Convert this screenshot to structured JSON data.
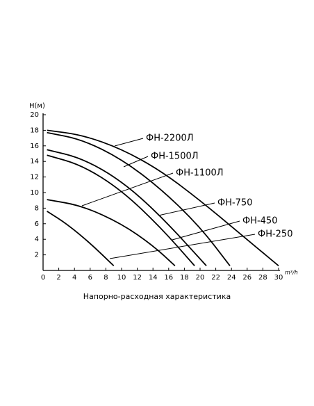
{
  "chart_data": {
    "type": "line",
    "y_label": "H(м)",
    "x_label": "m³/h",
    "caption": "Напорно-расходная характеристика",
    "xlim": [
      0,
      30
    ],
    "ylim": [
      0,
      20
    ],
    "xticks": [
      0,
      2,
      4,
      6,
      8,
      10,
      12,
      14,
      16,
      18,
      20,
      22,
      24,
      26,
      28,
      30
    ],
    "yticks": [
      2,
      4,
      6,
      8,
      10,
      12,
      14,
      16,
      18,
      20
    ],
    "color": "#000000",
    "series": [
      {
        "name": "ФН-2200Л",
        "x": [
          0.5,
          5,
          10,
          15,
          20,
          25,
          30
        ],
        "values": [
          18.0,
          17.4,
          15.6,
          12.8,
          9.0,
          4.8,
          0.6
        ]
      },
      {
        "name": "ФН-1500Л",
        "x": [
          0.5,
          5,
          10,
          15,
          20,
          23.8
        ],
        "values": [
          17.7,
          16.8,
          14.3,
          10.5,
          5.6,
          0.6
        ]
      },
      {
        "name": "ФН-1100Л",
        "x": [
          0.5,
          5,
          10,
          14,
          16.8
        ],
        "values": [
          9.1,
          8.3,
          6.0,
          3.2,
          0.6
        ]
      },
      {
        "name": "ФН-750",
        "x": [
          0.5,
          5,
          10,
          15,
          20.8
        ],
        "values": [
          15.5,
          14.4,
          11.5,
          7.0,
          0.6
        ]
      },
      {
        "name": "ФН-450",
        "x": [
          0.5,
          5,
          10,
          15,
          19.3
        ],
        "values": [
          14.8,
          13.5,
          10.3,
          5.5,
          0.6
        ]
      },
      {
        "name": "ФН-250",
        "x": [
          0.5,
          3,
          6,
          9
        ],
        "values": [
          7.6,
          6.0,
          3.5,
          0.6
        ]
      }
    ]
  }
}
